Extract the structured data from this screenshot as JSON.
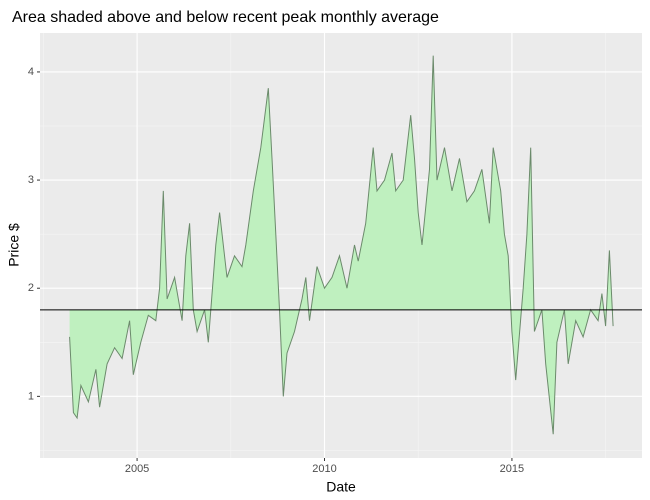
{
  "chart_data": {
    "type": "area-line",
    "title": "Area shaded above and below recent peak monthly average",
    "x_label": "Date",
    "y_label": "Price $",
    "x": [
      2003.2,
      2003.3,
      2003.4,
      2003.5,
      2003.7,
      2003.9,
      2004.0,
      2004.2,
      2004.4,
      2004.6,
      2004.8,
      2004.9,
      2005.1,
      2005.3,
      2005.5,
      2005.6,
      2005.7,
      2005.8,
      2006.0,
      2006.2,
      2006.3,
      2006.4,
      2006.5,
      2006.6,
      2006.8,
      2006.9,
      2007.1,
      2007.2,
      2007.4,
      2007.6,
      2007.8,
      2007.9,
      2008.1,
      2008.3,
      2008.5,
      2008.6,
      2008.7,
      2008.8,
      2008.9,
      2009.0,
      2009.2,
      2009.4,
      2009.5,
      2009.6,
      2009.8,
      2010.0,
      2010.2,
      2010.4,
      2010.6,
      2010.8,
      2010.9,
      2011.1,
      2011.3,
      2011.4,
      2011.6,
      2011.8,
      2011.9,
      2012.1,
      2012.3,
      2012.4,
      2012.5,
      2012.6,
      2012.8,
      2012.9,
      2013.0,
      2013.2,
      2013.4,
      2013.6,
      2013.8,
      2014.0,
      2014.2,
      2014.4,
      2014.5,
      2014.7,
      2014.8,
      2014.9,
      2015.0,
      2015.1,
      2015.3,
      2015.4,
      2015.5,
      2015.6,
      2015.8,
      2015.9,
      2016.1,
      2016.2,
      2016.4,
      2016.5,
      2016.7,
      2016.9,
      2017.1,
      2017.3,
      2017.4,
      2017.5,
      2017.6,
      2017.7
    ],
    "values": [
      1.55,
      0.85,
      0.8,
      1.1,
      0.95,
      1.25,
      0.9,
      1.3,
      1.45,
      1.35,
      1.7,
      1.2,
      1.5,
      1.75,
      1.7,
      2.0,
      2.9,
      1.9,
      2.1,
      1.7,
      2.3,
      2.6,
      1.8,
      1.6,
      1.8,
      1.5,
      2.4,
      2.7,
      2.1,
      2.3,
      2.2,
      2.4,
      2.9,
      3.3,
      3.85,
      3.2,
      2.5,
      1.8,
      1.0,
      1.4,
      1.6,
      1.9,
      2.1,
      1.7,
      2.2,
      2.0,
      2.1,
      2.3,
      2.0,
      2.4,
      2.25,
      2.6,
      3.3,
      2.9,
      3.0,
      3.25,
      2.9,
      3.0,
      3.6,
      3.2,
      2.7,
      2.4,
      3.1,
      4.15,
      3.0,
      3.3,
      2.9,
      3.2,
      2.8,
      2.9,
      3.1,
      2.6,
      3.3,
      2.9,
      2.5,
      2.3,
      1.6,
      1.15,
      2.0,
      2.5,
      3.3,
      1.6,
      1.8,
      1.3,
      0.65,
      1.5,
      1.8,
      1.3,
      1.7,
      1.55,
      1.8,
      1.7,
      1.95,
      1.65,
      2.35,
      1.65
    ],
    "reference_line": 1.8,
    "line_color": "#6b8a6b",
    "fill_color": "#bff0bf",
    "xlim": [
      2002.41,
      2018.47
    ],
    "xticks": [
      2005,
      2010,
      2015
    ],
    "minor_xticks": [
      2002.5,
      2007.5,
      2012.5,
      2017.5
    ],
    "ylim": [
      0.43,
      4.36
    ],
    "yticks": [
      1,
      2,
      3,
      4
    ],
    "minor_yticks": [
      0.5,
      1.5,
      2.5,
      3.5
    ],
    "grid": true
  }
}
